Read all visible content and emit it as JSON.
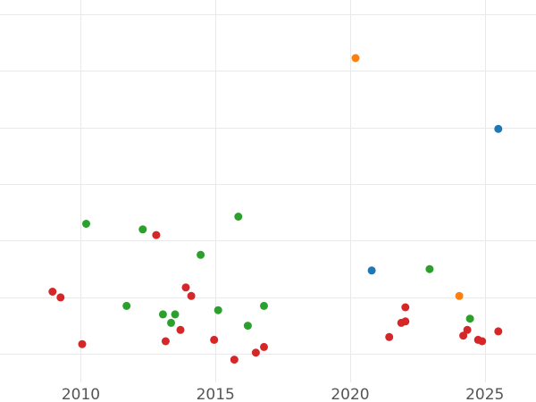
{
  "chart_data": {
    "type": "scatter",
    "title": "",
    "xlabel": "",
    "ylabel": "",
    "xlim": [
      2007.0,
      2026.9
    ],
    "ylim": [
      0,
      13.5
    ],
    "x_ticks": [
      2010,
      2015,
      2020,
      2025
    ],
    "x_tick_labels": [
      "2010",
      "2015",
      "2020",
      "2025"
    ],
    "y_gridlines": [
      1,
      3,
      5,
      7,
      9,
      11,
      13
    ],
    "grid": true,
    "legend": "none",
    "series": [
      {
        "color": "#d62728",
        "points": [
          {
            "x": 2008.95,
            "y": 3.2
          },
          {
            "x": 2009.25,
            "y": 3.0
          },
          {
            "x": 2010.05,
            "y": 1.35
          },
          {
            "x": 2012.8,
            "y": 5.2
          },
          {
            "x": 2013.15,
            "y": 1.45
          },
          {
            "x": 2013.7,
            "y": 1.85
          },
          {
            "x": 2013.9,
            "y": 3.35
          },
          {
            "x": 2014.1,
            "y": 3.05
          },
          {
            "x": 2014.95,
            "y": 1.5
          },
          {
            "x": 2015.7,
            "y": 0.8
          },
          {
            "x": 2016.5,
            "y": 1.05
          },
          {
            "x": 2016.8,
            "y": 1.25
          },
          {
            "x": 2021.45,
            "y": 1.6
          },
          {
            "x": 2021.9,
            "y": 2.1
          },
          {
            "x": 2022.05,
            "y": 2.15
          },
          {
            "x": 2022.05,
            "y": 2.65
          },
          {
            "x": 2024.2,
            "y": 1.65
          },
          {
            "x": 2024.35,
            "y": 1.85
          },
          {
            "x": 2024.75,
            "y": 1.5
          },
          {
            "x": 2024.9,
            "y": 1.45
          },
          {
            "x": 2025.5,
            "y": 1.8
          }
        ]
      },
      {
        "color": "#2ca02c",
        "points": [
          {
            "x": 2010.2,
            "y": 5.6
          },
          {
            "x": 2011.7,
            "y": 2.7
          },
          {
            "x": 2012.3,
            "y": 5.4
          },
          {
            "x": 2013.05,
            "y": 2.4
          },
          {
            "x": 2013.35,
            "y": 2.1
          },
          {
            "x": 2013.5,
            "y": 2.4
          },
          {
            "x": 2014.45,
            "y": 4.5
          },
          {
            "x": 2015.1,
            "y": 2.55
          },
          {
            "x": 2015.85,
            "y": 5.85
          },
          {
            "x": 2016.2,
            "y": 2.0
          },
          {
            "x": 2016.8,
            "y": 2.7
          },
          {
            "x": 2022.95,
            "y": 4.0
          },
          {
            "x": 2024.45,
            "y": 2.25
          }
        ]
      },
      {
        "color": "#1f77b4",
        "points": [
          {
            "x": 2020.8,
            "y": 3.95
          },
          {
            "x": 2025.5,
            "y": 8.95
          }
        ]
      },
      {
        "color": "#ff7f0e",
        "points": [
          {
            "x": 2020.2,
            "y": 11.45
          },
          {
            "x": 2024.05,
            "y": 3.05
          }
        ]
      }
    ]
  }
}
